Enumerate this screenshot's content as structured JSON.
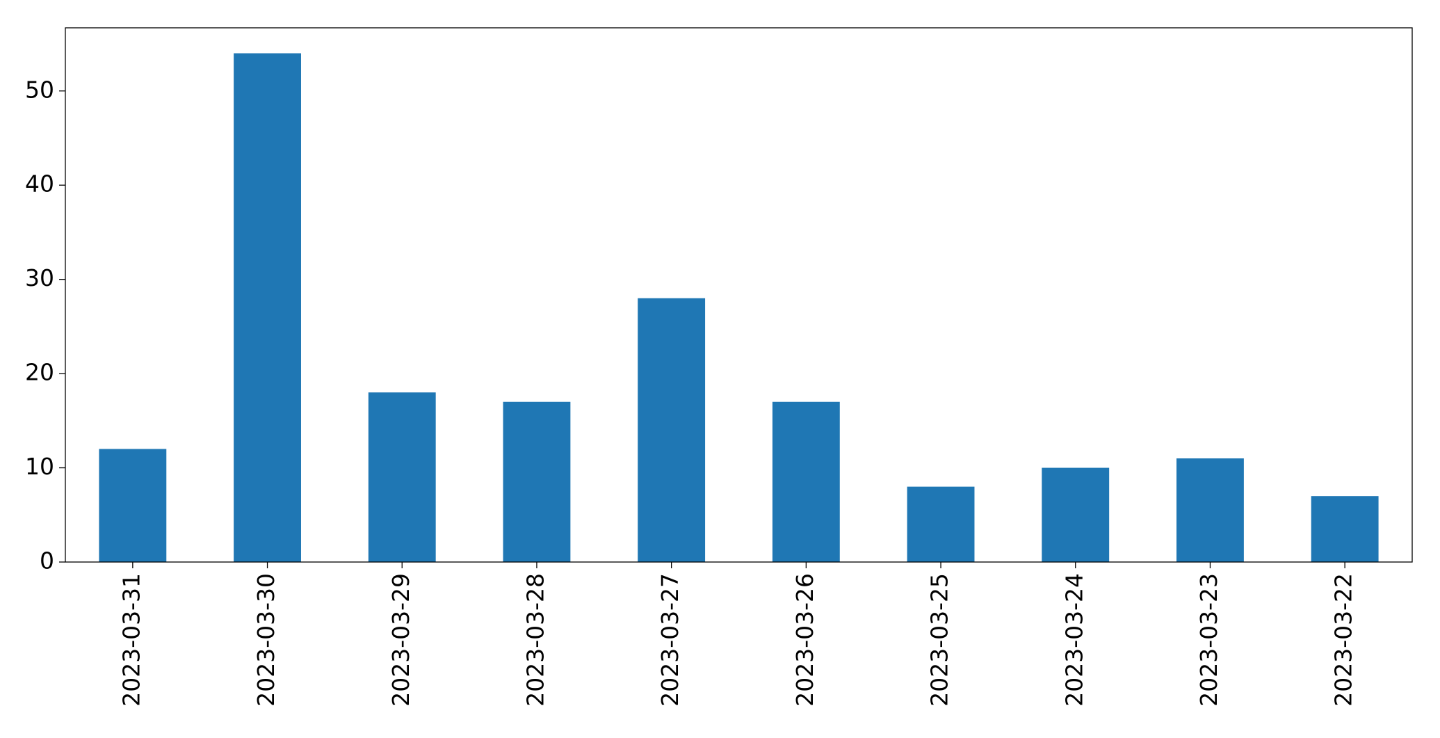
{
  "chart_data": {
    "type": "bar",
    "categories": [
      "2023-03-31",
      "2023-03-30",
      "2023-03-29",
      "2023-03-28",
      "2023-03-27",
      "2023-03-26",
      "2023-03-25",
      "2023-03-24",
      "2023-03-23",
      "2023-03-22"
    ],
    "values": [
      12,
      54,
      18,
      17,
      28,
      17,
      8,
      10,
      11,
      7
    ],
    "color": "#1f77b4",
    "ylim": [
      0,
      56.7
    ],
    "yticks": [
      0,
      10,
      20,
      30,
      40,
      50
    ],
    "grid": false
  }
}
